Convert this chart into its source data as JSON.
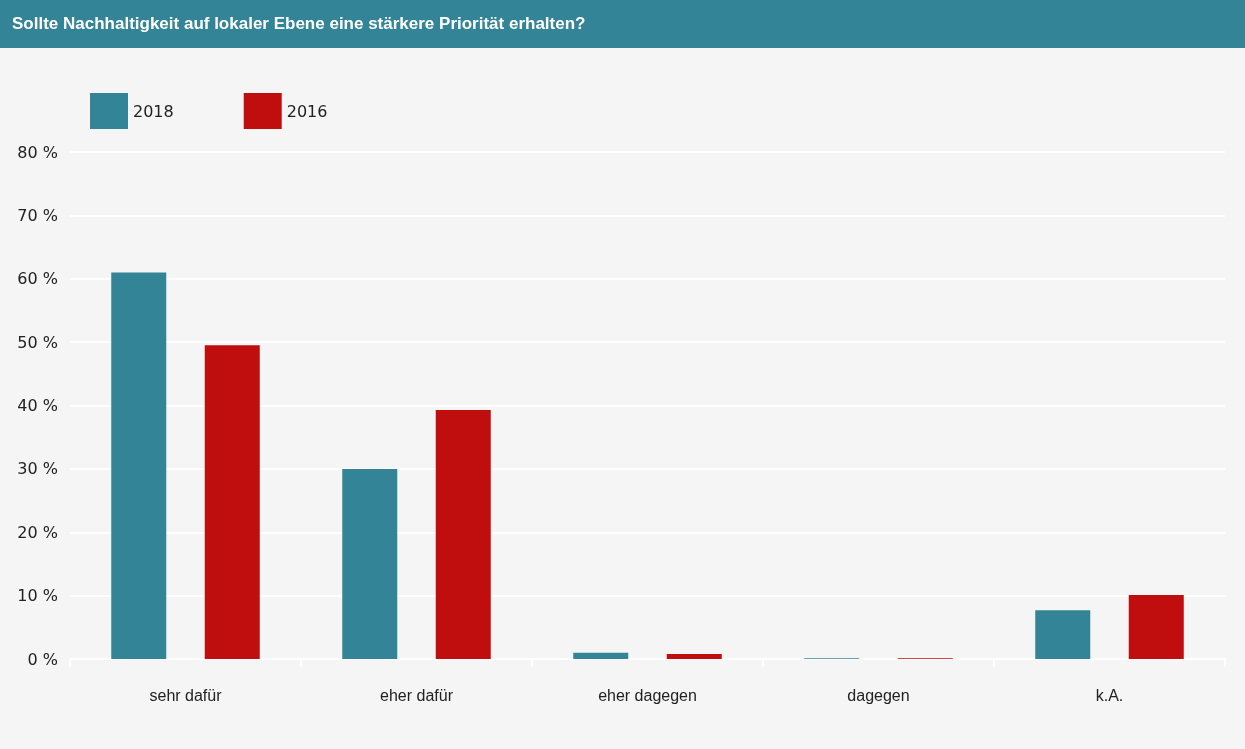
{
  "chart_data": {
    "type": "bar",
    "title": "Sollte Nachhaltigkeit auf lokaler Ebene eine stärkere Priorität erhalten?",
    "categories": [
      "sehr dafür",
      "eher dafür",
      "eher dagegen",
      "dagegen",
      "k.A."
    ],
    "series": [
      {
        "name": "2018",
        "color": "#338496",
        "values": [
          61,
          30,
          1,
          0.1,
          7.7
        ]
      },
      {
        "name": "2016",
        "color": "#c00d0e",
        "values": [
          49.5,
          39.3,
          0.8,
          0.1,
          10.1
        ]
      }
    ],
    "ylim": [
      0,
      80
    ],
    "yticks": [
      {
        "value": 0,
        "label": "0 %"
      },
      {
        "value": 10,
        "label": "10 %"
      },
      {
        "value": 20,
        "label": "20 %"
      },
      {
        "value": 30,
        "label": "30 %"
      },
      {
        "value": 40,
        "label": "40 %"
      },
      {
        "value": 50,
        "label": "50 %"
      },
      {
        "value": 60,
        "label": "60 %"
      },
      {
        "value": 70,
        "label": "70 %"
      },
      {
        "value": 80,
        "label": "80 %"
      }
    ],
    "grid": "y",
    "legend": "top left"
  }
}
